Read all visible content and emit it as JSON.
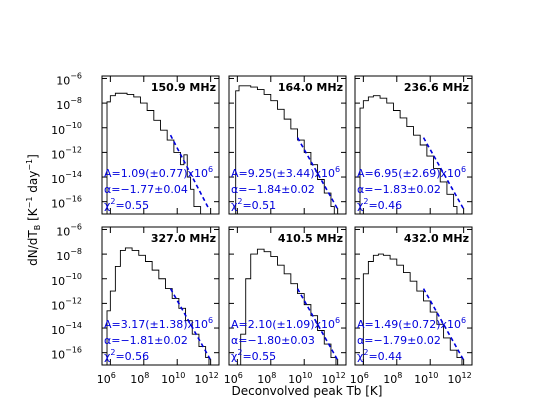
{
  "chart_data": [
    {
      "type": "line",
      "frequency_label": "150.9 MHz",
      "fit": {
        "A": "A=1.09(±0.77)x10",
        "A_exp": "6",
        "alpha": "α=−1.77±0.04",
        "chi": "χ",
        "chi_rest": "=0.55"
      },
      "histogram": {
        "logT": [
          5.8,
          6.0,
          6.3,
          6.6,
          7.0,
          7.4,
          7.8,
          8.2,
          8.6,
          9.0,
          9.4,
          9.8,
          10.2,
          10.4,
          10.6,
          10.8,
          11.0,
          11.2
        ],
        "logY": [
          -7.9,
          -7.4,
          -7.2,
          -7.2,
          -7.3,
          -7.5,
          -8.0,
          -8.6,
          -9.4,
          -10.2,
          -11.0,
          -12.0,
          -13.0,
          -12.2,
          -14.0,
          -15.0,
          -16.4,
          -16.4
        ]
      },
      "fit_line": {
        "logT": [
          9.6,
          11.9
        ],
        "logY": [
          -10.6,
          -16.6
        ]
      }
    },
    {
      "type": "line",
      "frequency_label": "164.0 MHz",
      "fit": {
        "A": "A=9.25(±3.44)x10",
        "A_exp": "6",
        "alpha": "α=−1.84±0.02",
        "chi": "χ",
        "chi_rest": "=0.51"
      },
      "histogram": {
        "logT": [
          5.9,
          6.1,
          6.4,
          6.8,
          7.2,
          7.6,
          8.0,
          8.4,
          8.8,
          9.2,
          9.6,
          10.0,
          10.4,
          10.8,
          11.2,
          11.6
        ],
        "logY": [
          -7.0,
          -6.6,
          -6.6,
          -6.7,
          -6.9,
          -7.3,
          -7.8,
          -8.5,
          -9.3,
          -10.1,
          -11.0,
          -12.0,
          -13.0,
          -14.2,
          -15.3,
          -16.4
        ]
      },
      "fit_line": {
        "logT": [
          9.6,
          12.0
        ],
        "logY": [
          -10.8,
          -16.6
        ]
      }
    },
    {
      "type": "line",
      "frequency_label": "236.6 MHz",
      "fit": {
        "A": "A=6.95(±2.69)x10",
        "A_exp": "6",
        "alpha": "α=−1.83±0.02",
        "chi": "χ",
        "chi_rest": "=0.46"
      },
      "histogram": {
        "logT": [
          5.8,
          6.0,
          6.3,
          6.6,
          7.0,
          7.4,
          7.8,
          8.2,
          8.6,
          9.0,
          9.4,
          9.8,
          10.2,
          10.6,
          11.0,
          11.4
        ],
        "logY": [
          -8.4,
          -7.8,
          -7.5,
          -7.4,
          -7.6,
          -8.0,
          -8.6,
          -9.2,
          -9.9,
          -10.6,
          -11.4,
          -12.3,
          -13.3,
          -14.4,
          -15.4,
          -16.4
        ]
      },
      "fit_line": {
        "logT": [
          9.6,
          12.0
        ],
        "logY": [
          -10.8,
          -16.6
        ]
      }
    },
    {
      "type": "line",
      "frequency_label": "327.0 MHz",
      "fit": {
        "A": "A=3.17(±1.38)x10",
        "A_exp": "6",
        "alpha": "α=−1.81±0.02",
        "chi": "χ",
        "chi_rest": "=0.56"
      },
      "histogram": {
        "logT": [
          5.8,
          6.0,
          6.3,
          6.6,
          6.9,
          7.3,
          7.7,
          8.1,
          8.5,
          8.9,
          9.3,
          9.7,
          10.1,
          10.5,
          10.9,
          11.3,
          11.7
        ],
        "logY": [
          -12.6,
          -11.0,
          -9.0,
          -7.7,
          -7.5,
          -7.7,
          -8.1,
          -8.6,
          -9.3,
          -10.0,
          -10.8,
          -11.6,
          -12.4,
          -13.4,
          -14.5,
          -15.5,
          -16.4
        ]
      },
      "fit_line": {
        "logT": [
          9.6,
          12.0
        ],
        "logY": [
          -10.8,
          -16.6
        ]
      }
    },
    {
      "type": "line",
      "frequency_label": "410.5 MHz",
      "fit": {
        "A": "A=2.10(±1.09)x10",
        "A_exp": "6",
        "alpha": "α=−1.80±0.03",
        "chi": "χ",
        "chi_rest": "=0.55"
      },
      "histogram": {
        "logT": [
          6.2,
          6.5,
          6.8,
          7.2,
          7.6,
          8.0,
          8.4,
          8.8,
          9.2,
          9.6,
          10.0,
          10.4,
          10.8,
          11.2,
          11.6
        ],
        "logY": [
          -14.5,
          -10.0,
          -8.0,
          -7.6,
          -7.8,
          -8.2,
          -8.9,
          -9.6,
          -10.4,
          -11.2,
          -12.1,
          -13.0,
          -14.2,
          -15.3,
          -16.4
        ]
      },
      "fit_line": {
        "logT": [
          9.6,
          12.0
        ],
        "logY": [
          -10.8,
          -16.6
        ]
      }
    },
    {
      "type": "line",
      "frequency_label": "432.0 MHz",
      "fit": {
        "A": "A=1.49(±0.72)x10",
        "A_exp": "6",
        "alpha": "α=−1.79±0.02",
        "chi": "χ",
        "chi_rest": "=0.44"
      },
      "histogram": {
        "logT": [
          6.0,
          6.3,
          6.6,
          6.9,
          7.2,
          7.6,
          8.0,
          8.4,
          8.8,
          9.2,
          9.6,
          10.0,
          10.4,
          10.8,
          11.2,
          11.6
        ],
        "logY": [
          -9.6,
          -8.6,
          -8.1,
          -8.0,
          -8.1,
          -8.4,
          -8.9,
          -9.5,
          -10.2,
          -11.0,
          -11.8,
          -12.7,
          -13.7,
          -14.8,
          -15.8,
          -16.4
        ]
      },
      "fit_line": {
        "logT": [
          9.6,
          12.0
        ],
        "logY": [
          -10.8,
          -16.6
        ]
      }
    }
  ],
  "axes": {
    "x_label": "Deconvolved peak Tb [K]",
    "x_tick_base": "10",
    "x_tick_exponents": [
      "6",
      "8",
      "10",
      "12"
    ],
    "x_range_log": [
      5.5,
      12.5
    ],
    "y_label_main": "dN/dT",
    "y_label_sub": "B",
    "y_label_units": "[K",
    "y_label_units_exp": "−1",
    "y_label_units_day": "day",
    "y_label_units_day_exp": "−1",
    "y_label_close": "]",
    "y_tick_base": "10",
    "y_tick_exponents": [
      "−6",
      "−8",
      "−10",
      "−12",
      "−14",
      "−16"
    ],
    "y_range_log": [
      -17.0,
      -5.8
    ]
  },
  "colors": {
    "histogram": "#000000",
    "fit": "#0000dd",
    "frame": "#000000"
  }
}
